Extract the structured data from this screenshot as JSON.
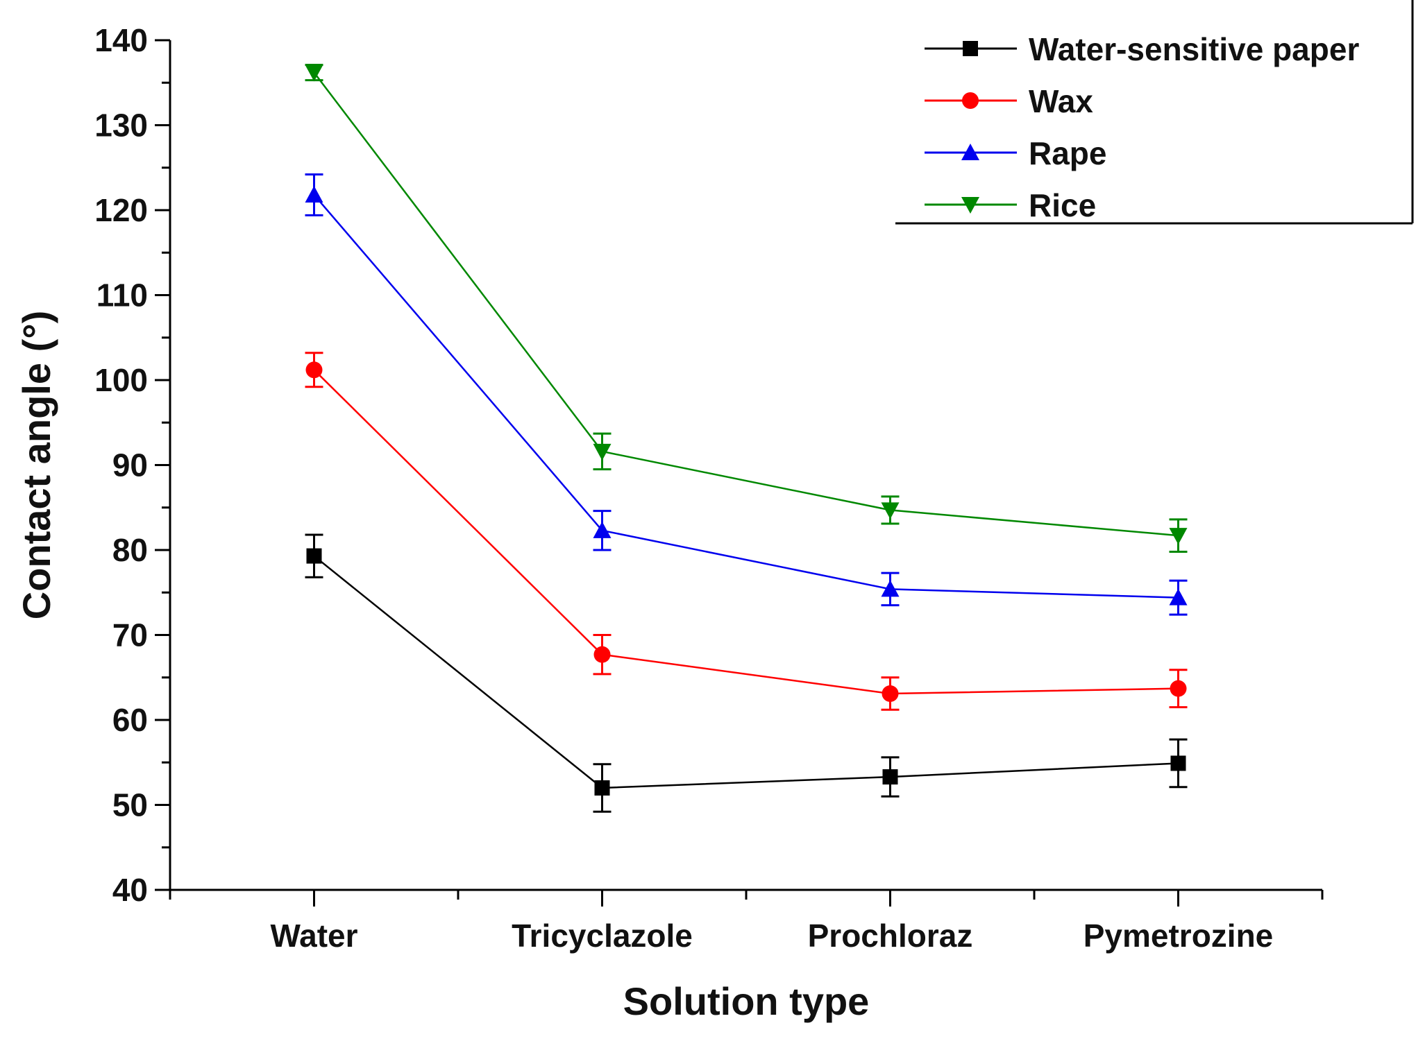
{
  "chart_data": {
    "type": "line",
    "xlabel": "Solution type",
    "ylabel": "Contact angle (°)",
    "categories": [
      "Water",
      "Tricyclazole",
      "Prochloraz",
      "Pymetrozine"
    ],
    "ylim": [
      40,
      140
    ],
    "yticks": [
      40,
      50,
      60,
      70,
      80,
      90,
      100,
      110,
      120,
      130,
      140
    ],
    "grid": false,
    "legend_position": "top-right",
    "series": [
      {
        "name": "Water-sensitive paper",
        "color": "#000000",
        "marker": "square",
        "values": [
          79.3,
          52.0,
          53.3,
          54.9
        ],
        "errors": [
          2.5,
          2.8,
          2.3,
          2.8
        ]
      },
      {
        "name": "Wax",
        "color": "#ff0000",
        "marker": "circle",
        "values": [
          101.2,
          67.7,
          63.1,
          63.7
        ],
        "errors": [
          2.0,
          2.3,
          1.9,
          2.2
        ]
      },
      {
        "name": "Rape",
        "color": "#0000ee",
        "marker": "triangle-up",
        "values": [
          121.8,
          82.3,
          75.4,
          74.4
        ],
        "errors": [
          2.4,
          2.3,
          1.9,
          2.0
        ]
      },
      {
        "name": "Rice",
        "color": "#008800",
        "marker": "triangle-down",
        "values": [
          136.2,
          91.6,
          84.7,
          81.7
        ],
        "errors": [
          0.9,
          2.1,
          1.6,
          1.9
        ]
      }
    ]
  }
}
